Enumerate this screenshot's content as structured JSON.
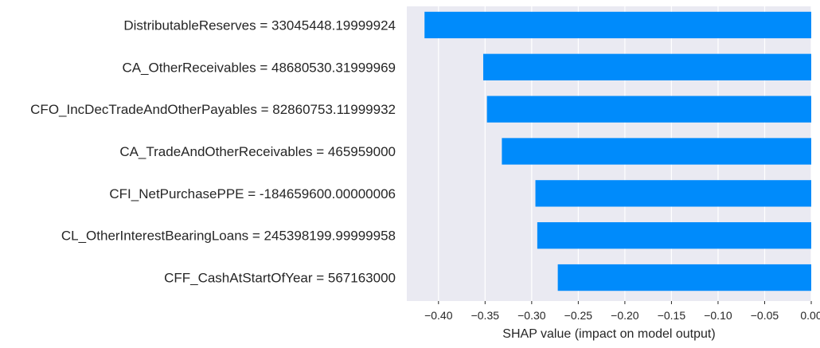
{
  "chart_data": {
    "type": "bar",
    "orientation": "horizontal",
    "categories": [
      "DistributableReserves = 33045448.19999924",
      "CA_OtherReceivables = 48680530.31999969",
      "CFO_IncDecTradeAndOtherPayables = 82860753.11999932",
      "CA_TradeAndOtherReceivables = 465959000",
      "CFI_NetPurchasePPE = -184659600.00000006",
      "CL_OtherInterestBearingLoans = 245398199.99999958",
      "CFF_CashAtStartOfYear = 567163000"
    ],
    "values": [
      -0.415,
      -0.352,
      -0.348,
      -0.332,
      -0.296,
      -0.294,
      -0.272
    ],
    "xlabel": "SHAP value (impact on model output)",
    "ylabel": "",
    "title": "",
    "xlim": [
      -0.434,
      0.0
    ],
    "xticks": [
      -0.4,
      -0.35,
      -0.3,
      -0.25,
      -0.2,
      -0.15,
      -0.1,
      -0.05,
      0.0
    ],
    "xtick_labels": [
      "−0.40",
      "−0.35",
      "−0.30",
      "−0.25",
      "−0.20",
      "−0.15",
      "−0.10",
      "−0.05",
      "0.00"
    ],
    "grid": true,
    "bar_color": "#008bfb",
    "plot_background": "#eaeaf2",
    "grid_color": "#ffffff"
  }
}
